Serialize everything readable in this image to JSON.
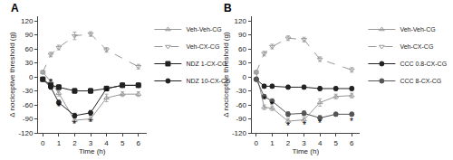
{
  "chart_data": [
    {
      "type": "line",
      "title": "A",
      "xlabel": "Time (h)",
      "ylabel": "Δ nociceptive threshold (g)",
      "x": [
        0,
        0.5,
        1,
        2,
        3,
        4,
        5,
        6
      ],
      "xlim": [
        -0.3,
        6.5
      ],
      "xticks": [
        0,
        1,
        2,
        3,
        4,
        5,
        6
      ],
      "ylim": [
        -120,
        130
      ],
      "yticks": [
        -120,
        -90,
        -60,
        -30,
        0,
        30,
        60,
        90,
        120
      ],
      "grid": false,
      "legend": "right",
      "series": [
        {
          "name": "Veh-Veh-CG",
          "color": "#999999",
          "marker": "triangle-up-open",
          "line_style": "solid",
          "values": [
            10,
            -10,
            -35,
            -93,
            -90,
            -45,
            -37,
            -37
          ],
          "errors": [
            4,
            5,
            6,
            5,
            5,
            8,
            5,
            5
          ]
        },
        {
          "name": "Veh-CX-CG",
          "color": "#999999",
          "marker": "triangle-down-open",
          "line_style": "dash",
          "values": [
            10,
            48,
            63,
            88,
            92,
            58,
            null,
            22
          ],
          "errors": [
            3,
            5,
            5,
            8,
            5,
            5,
            null,
            5
          ]
        },
        {
          "name": "NDZ 1-CX-CG",
          "color": "#222222",
          "marker": "square",
          "line_style": "solid",
          "values": [
            -5,
            -18,
            -22,
            -30,
            -30,
            -25,
            -18,
            -18
          ],
          "errors": [
            3,
            4,
            5,
            5,
            5,
            5,
            4,
            4
          ]
        },
        {
          "name": "NDZ 10-CX-CG",
          "color": "#222222",
          "marker": "circle",
          "line_style": "solid",
          "values": [
            -5,
            -22,
            -55,
            -83,
            -77,
            -25,
            -18,
            -18
          ],
          "errors": [
            3,
            4,
            5,
            5,
            5,
            5,
            4,
            4
          ]
        }
      ],
      "annotations": [
        {
          "x": 0.5,
          "y": -13,
          "text": "*"
        },
        {
          "x": 1,
          "y": -65,
          "text": "*"
        },
        {
          "x": 2,
          "y": -102,
          "text": "*"
        },
        {
          "x": 3,
          "y": -98,
          "text": "*"
        },
        {
          "x": 4,
          "y": -32,
          "text": "*"
        }
      ]
    },
    {
      "type": "line",
      "title": "B",
      "xlabel": "Time (h)",
      "ylabel": "Δ nociceptive threshold (g)",
      "x": [
        0,
        0.5,
        1,
        2,
        3,
        4,
        5,
        6
      ],
      "xlim": [
        -0.3,
        6.5
      ],
      "xticks": [
        0,
        1,
        2,
        3,
        4,
        5,
        6
      ],
      "ylim": [
        -120,
        130
      ],
      "yticks": [
        -120,
        -90,
        -60,
        -30,
        0,
        30,
        60,
        90,
        120
      ],
      "grid": false,
      "legend": "right",
      "series": [
        {
          "name": "Veh-Veh-CG",
          "color": "#999999",
          "marker": "triangle-up-open",
          "line_style": "solid",
          "values": [
            10,
            -65,
            -67,
            -95,
            -92,
            -55,
            -42,
            -40
          ],
          "errors": [
            4,
            5,
            5,
            5,
            5,
            8,
            5,
            5
          ]
        },
        {
          "name": "Veh-CX-CG",
          "color": "#999999",
          "marker": "triangle-down-open",
          "line_style": "dash",
          "values": [
            10,
            50,
            65,
            83,
            80,
            38,
            null,
            15
          ],
          "errors": [
            3,
            5,
            5,
            5,
            5,
            5,
            null,
            5
          ]
        },
        {
          "name": "CCC 0.8-CX-CG",
          "color": "#222222",
          "marker": "circle",
          "line_style": "solid",
          "values": [
            -5,
            -20,
            -20,
            -22,
            -22,
            -25,
            -25,
            -25
          ],
          "errors": [
            3,
            4,
            4,
            4,
            4,
            4,
            4,
            4
          ]
        },
        {
          "name": "CCC 8-CX-CG",
          "color": "#555555",
          "marker": "circle",
          "line_style": "solid",
          "values": [
            -5,
            -42,
            -52,
            -80,
            -78,
            -88,
            -80,
            -80
          ],
          "errors": [
            3,
            4,
            5,
            5,
            5,
            5,
            4,
            4
          ]
        }
      ],
      "annotations": [
        {
          "x": 0.5,
          "y": -50,
          "text": "*"
        },
        {
          "x": 1,
          "y": -60,
          "text": "*"
        },
        {
          "x": 2,
          "y": -105,
          "text": "*"
        },
        {
          "x": 3,
          "y": -103,
          "text": "*"
        },
        {
          "x": 4,
          "y": -100,
          "text": "*"
        },
        {
          "x": 6,
          "y": -95,
          "text": "*"
        }
      ]
    }
  ]
}
